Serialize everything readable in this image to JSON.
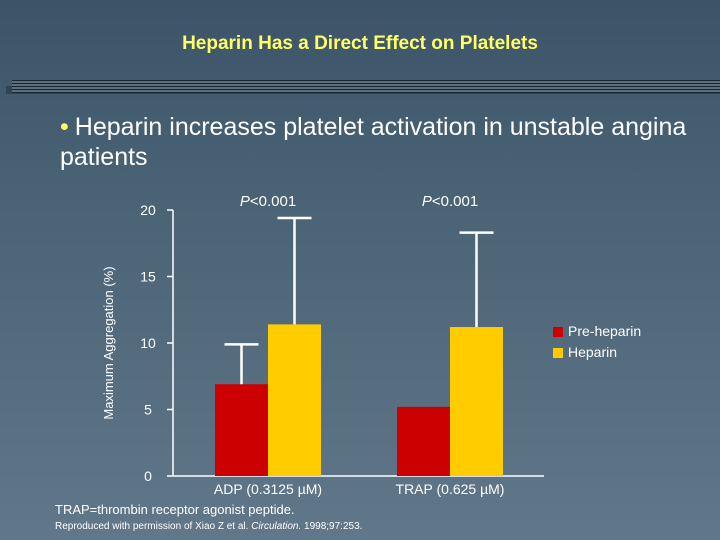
{
  "slide": {
    "title": "Heparin Has a Direct Effect on Platelets",
    "bullet_symbol": "•",
    "bullet": "Heparin increases platelet activation in unstable angina patients",
    "footnote": "TRAP=thrombin receptor agonist peptide.",
    "reference": {
      "prefix": "Reproduced with permission of Xiao Z et al. ",
      "journal": "Circulation.",
      "suffix": " 1998;97:253."
    }
  },
  "chart_data": {
    "type": "bar",
    "ylabel": "Maximum Aggregation (%)",
    "xlabel": "",
    "ylim": [
      0,
      20
    ],
    "yticks": [
      0,
      5,
      10,
      15,
      20
    ],
    "categories": [
      "ADP (0.3125 µM)",
      "TRAP (0.625 µM)"
    ],
    "series": [
      {
        "name": "Pre-heparin",
        "color": "#cc0000",
        "values": [
          6.9,
          5.2
        ],
        "error_upper": [
          9.9,
          null
        ]
      },
      {
        "name": "Heparin",
        "color": "#ffcc00",
        "values": [
          11.4,
          11.2
        ],
        "error_upper": [
          19.4,
          18.3
        ]
      }
    ],
    "annotations": [
      "P<0.001",
      "P<0.001"
    ],
    "legend_position": "right"
  }
}
